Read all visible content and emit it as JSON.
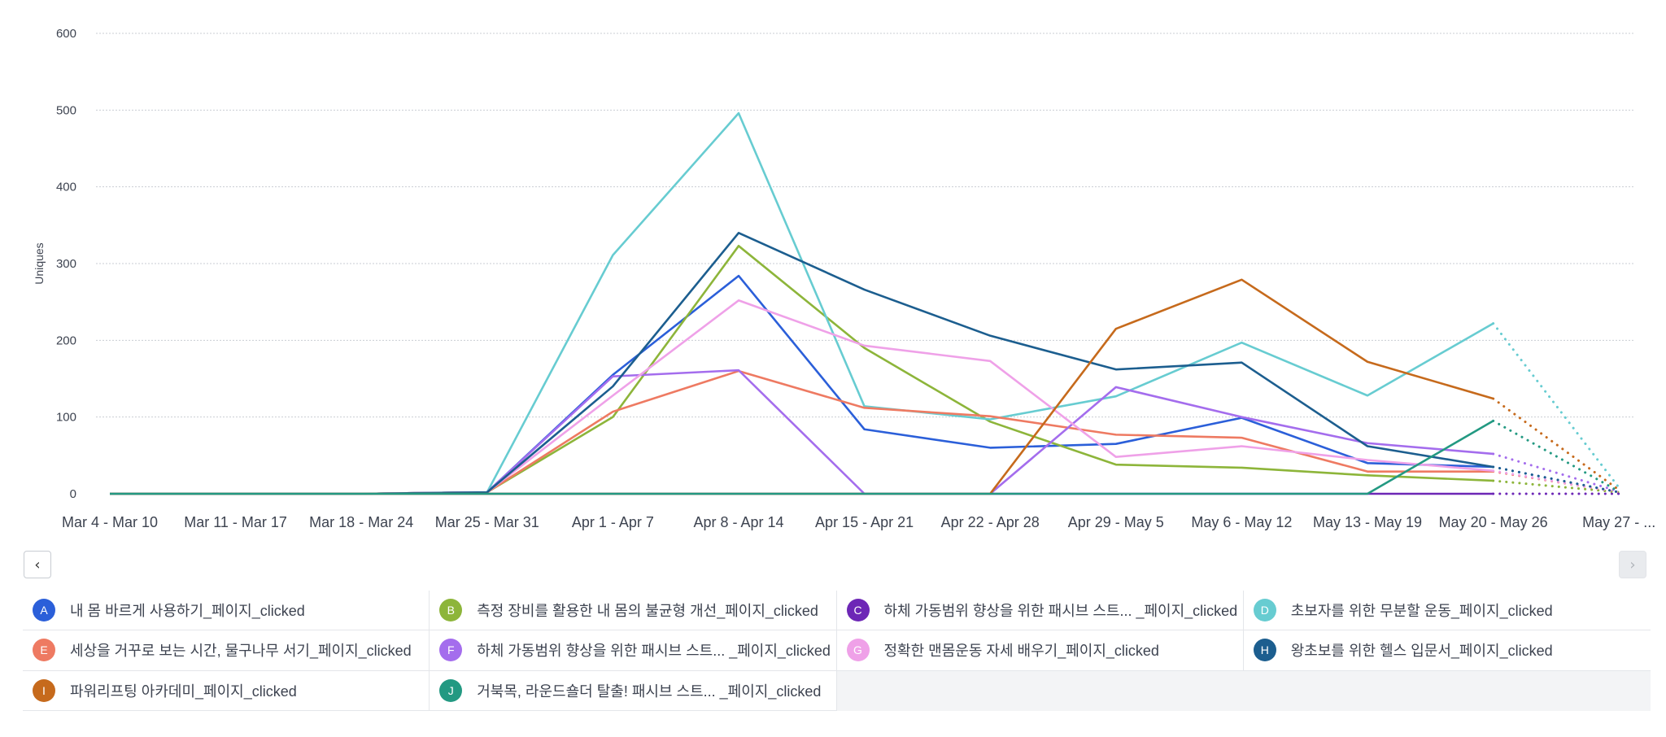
{
  "chart_data": {
    "type": "line",
    "ylabel": "Uniques",
    "yticks": [
      0,
      100,
      200,
      300,
      400,
      500,
      600
    ],
    "ylim": [
      0,
      600
    ],
    "grid": true,
    "categories": [
      "Mar 4 - Mar 10",
      "Mar 11 - Mar 17",
      "Mar 18 - Mar 24",
      "Mar 25 - Mar 31",
      "Apr 1 - Apr 7",
      "Apr 8 - Apr 14",
      "Apr 15 - Apr 21",
      "Apr 22 - Apr 28",
      "Apr 29 - May 5",
      "May 6 - May 12",
      "May 13 - May 19",
      "May 20 - May 26",
      "May 27 - ..."
    ],
    "incomplete_period": "May 27 - ...",
    "series": [
      {
        "letter": "A",
        "name": "내 몸 바르게 사용하기_페이지_clicked",
        "color": "#2b5fd9",
        "values": [
          0,
          0,
          0,
          2,
          155,
          284,
          84,
          60,
          65,
          99,
          40,
          35,
          2
        ]
      },
      {
        "letter": "B",
        "name": "측정 장비를 활용한 내 몸의 불균형 개선_페이지_clicked",
        "color": "#8db53a",
        "values": [
          0,
          0,
          0,
          2,
          100,
          323,
          190,
          94,
          38,
          34,
          24,
          17,
          2
        ]
      },
      {
        "letter": "C",
        "name": "하체 가동범위 향상을 위한 패시브 스트... _페이지_clicked",
        "color": "#6d27b6",
        "values": [
          0,
          0,
          0,
          0,
          0,
          0,
          0,
          0,
          0,
          0,
          0,
          0,
          0
        ]
      },
      {
        "letter": "D",
        "name": "초보자를 위한 무분할 운동_페이지_clicked",
        "color": "#67ccd1",
        "values": [
          0,
          0,
          0,
          2,
          311,
          496,
          114,
          97,
          127,
          197,
          128,
          222,
          8
        ]
      },
      {
        "letter": "E",
        "name": "세상을 거꾸로 보는 시간, 물구나무 서기_페이지_clicked",
        "color": "#ee7a62",
        "values": [
          0,
          0,
          0,
          2,
          107,
          160,
          112,
          101,
          77,
          73,
          29,
          29,
          2
        ]
      },
      {
        "letter": "F",
        "name": "하체 가동범위 향상을 위한 패시브 스트... _페이지_clicked",
        "color": "#a46ded",
        "values": [
          0,
          0,
          0,
          2,
          153,
          161,
          0,
          0,
          139,
          100,
          66,
          52,
          3
        ]
      },
      {
        "letter": "G",
        "name": "정확한 맨몸운동 자세 배우기_페이지_clicked",
        "color": "#efa1e8",
        "values": [
          0,
          0,
          0,
          2,
          128,
          252,
          193,
          173,
          48,
          62,
          44,
          30,
          2
        ]
      },
      {
        "letter": "H",
        "name": "왕초보를 위한 헬스 입문서_페이지_clicked",
        "color": "#1c5e8f",
        "values": [
          0,
          0,
          0,
          2,
          140,
          340,
          266,
          206,
          162,
          171,
          62,
          35,
          2
        ]
      },
      {
        "letter": "I",
        "name": "파워리프팅 아카데미_페이지_clicked",
        "color": "#c66a1c",
        "values": [
          0,
          0,
          0,
          0,
          0,
          0,
          0,
          0,
          215,
          279,
          172,
          124,
          5
        ]
      },
      {
        "letter": "J",
        "name": "거북목, 라운드숄더 탈출! 패시브 스트...  _페이지_clicked",
        "color": "#239982",
        "values": [
          0,
          0,
          0,
          0,
          0,
          0,
          0,
          0,
          0,
          0,
          0,
          95,
          3
        ]
      }
    ]
  },
  "nav": {
    "prev_icon": "‹",
    "next_icon": "›"
  }
}
